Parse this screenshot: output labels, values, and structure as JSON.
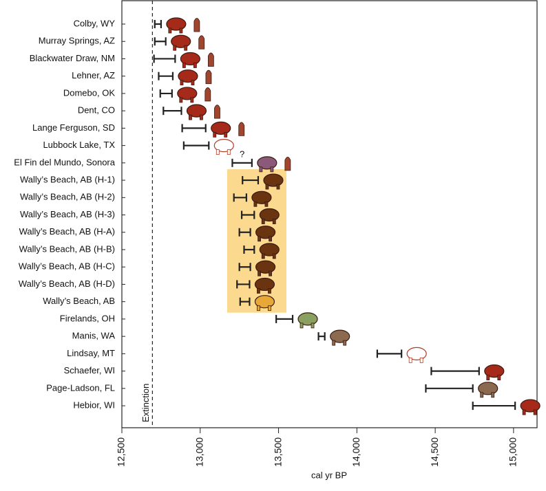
{
  "chart_data": {
    "type": "range",
    "x_label": "cal yr BP",
    "categories": [
      "Colby, WY",
      "Murray Springs, AZ",
      "Blackwater Draw, NM",
      "Lehner, AZ",
      "Domebo, OK",
      "Dent, CO",
      "Lange Ferguson, SD",
      "Lubbock Lake, TX",
      "El Fin del Mundo, Sonora",
      "Wally’s Beach, AB (H-1)",
      "Wally’s Beach, AB (H-2)",
      "Wally’s Beach, AB (H-3)",
      "Wally’s Beach, AB (H-A)",
      "Wally’s Beach, AB (H-B)",
      "Wally’s Beach, AB (H-C)",
      "Wally’s Beach, AB (H-D)",
      "Wally’s Beach, AB",
      "Firelands, OH",
      "Manis, WA",
      "Lindsay, MT",
      "Schaefer, WI",
      "Page-Ladson, FL",
      "Hebior, WI"
    ],
    "low": [
      12710,
      12710,
      12705,
      12735,
      12745,
      12765,
      12885,
      12895,
      13205,
      13270,
      13215,
      13265,
      13250,
      13280,
      13250,
      13235,
      13255,
      13485,
      13755,
      14130,
      14475,
      14440,
      14740
    ],
    "high": [
      12750,
      12780,
      12840,
      12825,
      12820,
      12880,
      13035,
      13055,
      13330,
      13370,
      13295,
      13345,
      13320,
      13345,
      13320,
      13315,
      13315,
      13590,
      13795,
      14285,
      14780,
      14740,
      15010
    ],
    "icon_colors": [
      "#a52a1a",
      "#a52a1a",
      "#a52a1a",
      "#a52a1a",
      "#a52a1a",
      "#a52a1a",
      "#a52a1a",
      "#ffffff",
      "#8b5a7a",
      "#6b3410",
      "#6b3410",
      "#6b3410",
      "#6b3410",
      "#6b3410",
      "#6b3410",
      "#6b3410",
      "#e8a838",
      "#8aa060",
      "#8b6a50",
      "#ffffff",
      "#a52a1a",
      "#8b6a50",
      "#a52a1a"
    ],
    "highlight_color": "#fbd98e",
    "annotation": {
      "text": "?",
      "row": 8
    },
    "extinction": {
      "value": 12695,
      "label": "Extinction"
    },
    "xlim": [
      12500,
      15150
    ],
    "xticks": [
      {
        "value": 12500,
        "label": "12,500"
      },
      {
        "value": 13000,
        "label": "13,000"
      },
      {
        "value": 13500,
        "label": "13,500"
      },
      {
        "value": 14000,
        "label": "14,000"
      },
      {
        "value": 14500,
        "label": "14,500"
      },
      {
        "value": 15000,
        "label": "15,000"
      }
    ]
  }
}
